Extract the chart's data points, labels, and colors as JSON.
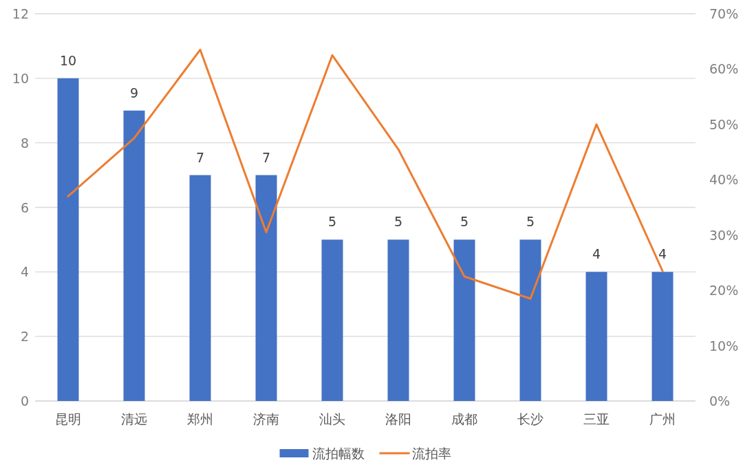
{
  "chart_data": {
    "type": "bar",
    "categories": [
      "昆明",
      "清远",
      "郑州",
      "济南",
      "汕头",
      "洛阳",
      "成都",
      "长沙",
      "三亚",
      "广州"
    ],
    "series": [
      {
        "name": "流拍幅数",
        "color": "#4472c4",
        "values": [
          10,
          9,
          7,
          7,
          5,
          5,
          5,
          5,
          4,
          4
        ],
        "value_labels": [
          "10",
          "9",
          "7",
          "7",
          "5",
          "5",
          "5",
          "5",
          "4",
          "4"
        ]
      },
      {
        "name": "流拍率",
        "type": "line",
        "axis": "y2",
        "color": "#ed7d31",
        "values": [
          37,
          47.5,
          63.5,
          30.5,
          62.5,
          45.5,
          22.5,
          18.5,
          50,
          23.5
        ]
      }
    ],
    "ylim": [
      0,
      12
    ],
    "yticks": [
      0,
      2,
      4,
      6,
      8,
      10,
      12
    ],
    "y2lim": [
      0,
      70
    ],
    "y2ticks": [
      {
        "value": 0,
        "label": "0%"
      },
      {
        "value": 10,
        "label": "10%"
      },
      {
        "value": 20,
        "label": "20%"
      },
      {
        "value": 30,
        "label": "30%"
      },
      {
        "value": 40,
        "label": "40%"
      },
      {
        "value": 50,
        "label": "50%"
      },
      {
        "value": 60,
        "label": "60%"
      },
      {
        "value": 70,
        "label": "70%"
      }
    ],
    "grid": "y",
    "legend": "bottom"
  }
}
